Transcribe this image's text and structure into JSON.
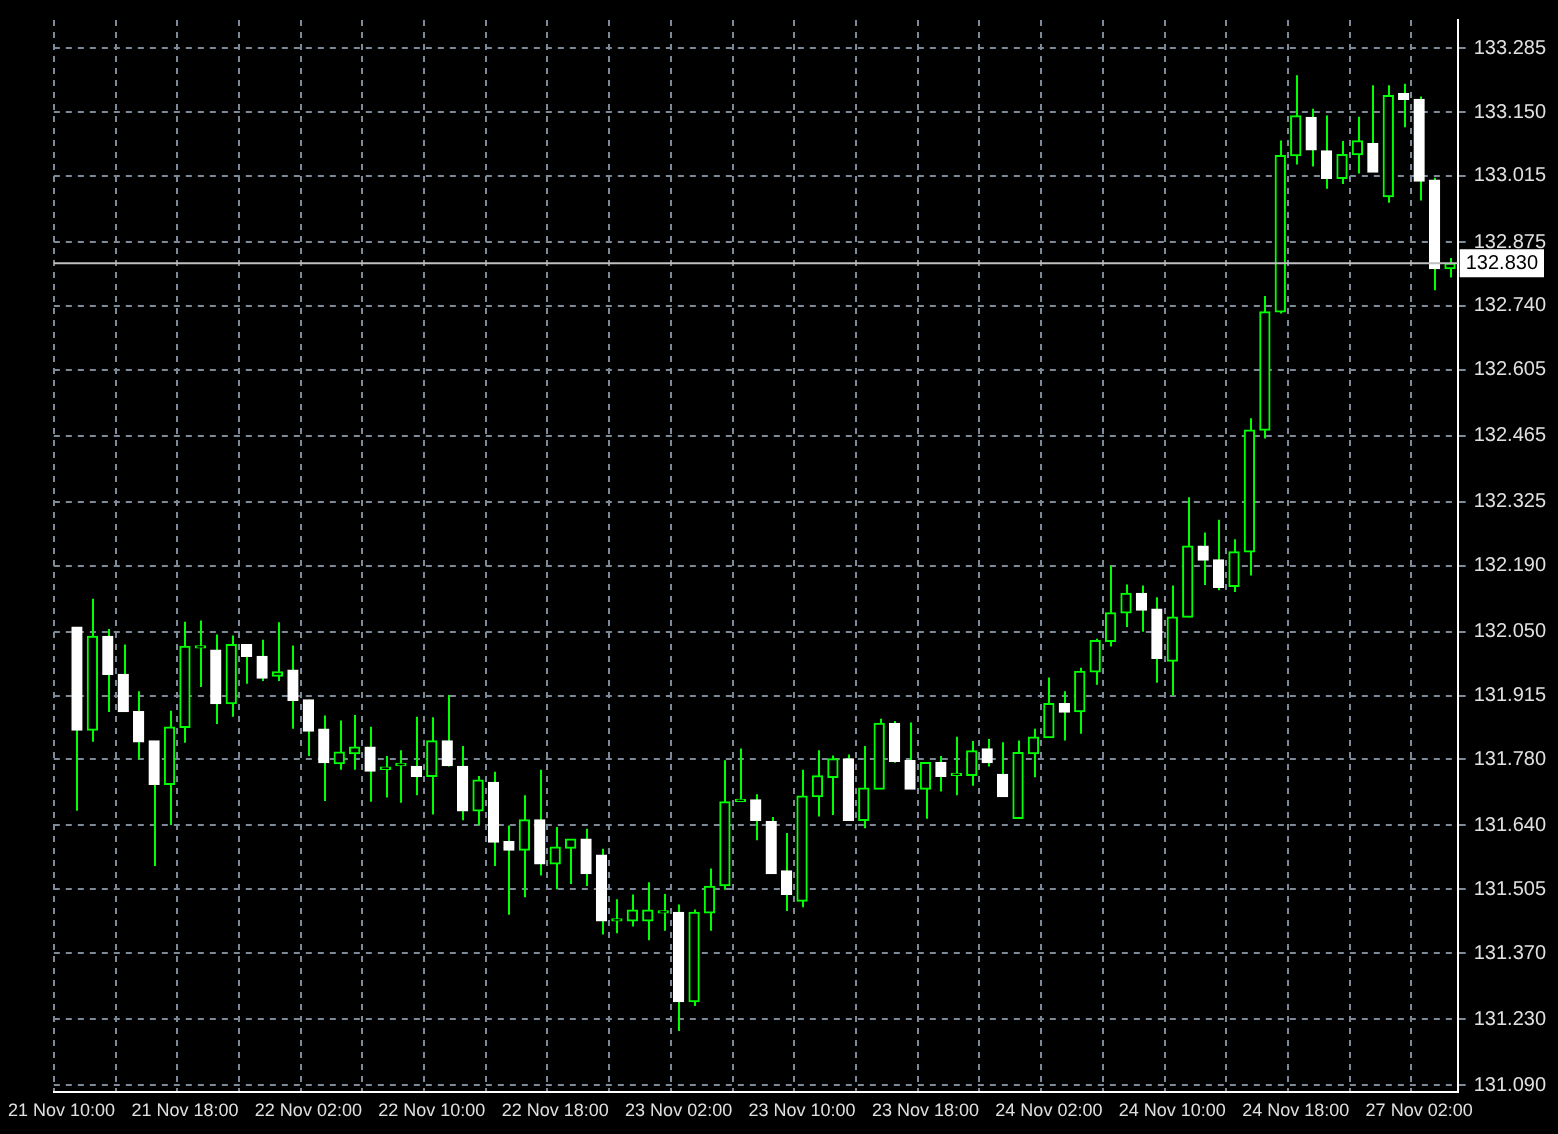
{
  "chart_data": {
    "type": "candlestick",
    "grid": true,
    "colors": [
      null,
      "#ffffff",
      "#00ff00",
      "#ffffff",
      "#ffffff",
      "#ffffff",
      "#ffffff",
      "#00ff00",
      "#00ff00",
      "#00ff00",
      "#ffffff",
      "#00ff00",
      "#ffffff",
      "#ffffff",
      "#00ff00",
      "#ffffff",
      "#ffffff",
      "#ffffff",
      "#00ff00",
      "#00ff00",
      "#ffffff",
      "#00ff00",
      "#00ff00",
      "#ffffff",
      "#00ff00",
      "#ffffff",
      "#ffffff",
      "#00ff00",
      "#ffffff",
      "#ffffff",
      "#00ff00",
      "#ffffff",
      "#00ff00",
      "#00ff00",
      "#ffffff",
      "#ffffff",
      "#00ff00",
      "#00ff00",
      "#00ff00",
      "#00ff00",
      "#ffffff",
      "#00ff00",
      "#00ff00",
      "#00ff00",
      "#00ff00",
      "#ffffff",
      "#ffffff",
      "#ffffff",
      "#00ff00",
      "#00ff00",
      "#00ff00",
      "#ffffff",
      "#00ff00",
      "#00ff00",
      "#ffffff",
      "#ffffff",
      "#00ff00",
      "#ffffff",
      "#00ff00",
      "#00ff00",
      "#ffffff",
      "#ffffff",
      "#00ff00",
      "#00ff00",
      "#00ff00",
      "#ffffff",
      "#00ff00",
      "#00ff00",
      "#00ff00",
      "#00ff00",
      "#ffffff",
      "#ffffff",
      "#00ff00",
      "#00ff00",
      "#ffffff",
      "#ffffff",
      "#00ff00",
      "#00ff00",
      "#00ff00",
      "#00ff00",
      "#00ff00",
      "#ffffff",
      "#ffffff",
      "#00ff00",
      "#00ff00",
      "#ffffff",
      "#00ff00",
      "#ffffff",
      "#ffffff",
      "#ffffff",
      "#00ff00"
    ],
    "categories": [
      "21 Nov 10:00",
      null,
      null,
      null,
      null,
      null,
      null,
      null,
      "21 Nov 18:00",
      null,
      null,
      null,
      null,
      null,
      null,
      null,
      "22 Nov 02:00",
      null,
      null,
      null,
      null,
      null,
      null,
      null,
      "22 Nov 10:00",
      null,
      null,
      null,
      null,
      null,
      null,
      null,
      "22 Nov 18:00",
      null,
      null,
      null,
      null,
      null,
      null,
      null,
      "23 Nov 02:00",
      null,
      null,
      null,
      null,
      null,
      null,
      null,
      "23 Nov 10:00",
      null,
      null,
      null,
      null,
      null,
      null,
      null,
      "23 Nov 18:00",
      null,
      null,
      null,
      null,
      null,
      null,
      null,
      "24 Nov 02:00",
      null,
      null,
      null,
      null,
      null,
      null,
      null,
      "24 Nov 10:00",
      null,
      null,
      null,
      null,
      null,
      null,
      null,
      "24 Nov 18:00",
      null,
      null,
      null,
      null,
      null,
      null,
      null,
      "27 Nov 02:00",
      null,
      null
    ],
    "ohlc": [
      null,
      [
        132.06,
        132.06,
        131.671,
        131.842
      ],
      [
        131.842,
        132.12,
        131.817,
        132.04
      ],
      [
        132.04,
        132.056,
        131.88,
        131.96
      ],
      [
        131.96,
        132.023,
        131.881,
        131.881
      ],
      [
        131.881,
        131.924,
        131.78,
        131.817
      ],
      [
        131.819,
        131.819,
        131.554,
        131.727
      ],
      [
        131.727,
        131.883,
        131.641,
        131.848
      ],
      [
        131.848,
        132.071,
        131.815,
        132.019
      ],
      [
        132.016,
        132.074,
        131.933,
        132.016
      ],
      [
        132.011,
        132.044,
        131.855,
        131.898
      ],
      [
        131.898,
        132.042,
        131.87,
        132.023
      ],
      [
        132.023,
        132.023,
        131.94,
        131.998
      ],
      [
        131.998,
        132.033,
        131.946,
        131.952
      ],
      [
        131.956,
        132.07,
        131.946,
        131.965
      ],
      [
        131.969,
        132.021,
        131.845,
        131.905
      ],
      [
        131.906,
        131.906,
        131.787,
        131.84
      ],
      [
        131.844,
        131.873,
        131.692,
        131.773
      ],
      [
        131.771,
        131.862,
        131.758,
        131.795
      ],
      [
        131.792,
        131.874,
        131.758,
        131.806
      ],
      [
        131.806,
        131.849,
        131.69,
        131.755
      ],
      [
        131.759,
        131.787,
        131.699,
        131.759
      ],
      [
        131.767,
        131.799,
        131.688,
        131.767
      ],
      [
        131.765,
        131.87,
        131.704,
        131.744
      ],
      [
        131.744,
        131.869,
        131.663,
        131.819
      ],
      [
        131.819,
        131.916,
        131.765,
        131.767
      ],
      [
        131.765,
        131.808,
        131.651,
        131.671
      ],
      [
        131.671,
        131.745,
        131.641,
        131.736
      ],
      [
        131.731,
        131.754,
        131.554,
        131.605
      ],
      [
        131.606,
        131.64,
        131.451,
        131.588
      ],
      [
        131.588,
        131.704,
        131.488,
        131.652
      ],
      [
        131.652,
        131.758,
        131.534,
        131.559
      ],
      [
        131.559,
        131.637,
        131.505,
        131.594
      ],
      [
        131.592,
        131.611,
        131.516,
        131.611
      ],
      [
        131.611,
        131.633,
        131.512,
        131.538
      ],
      [
        131.577,
        131.591,
        131.409,
        131.438
      ],
      [
        131.438,
        131.484,
        131.412,
        131.438
      ],
      [
        131.438,
        131.494,
        131.426,
        131.461
      ],
      [
        131.438,
        131.52,
        131.397,
        131.461
      ],
      [
        131.455,
        131.495,
        131.417,
        131.455
      ],
      [
        131.456,
        131.473,
        131.205,
        131.267
      ],
      [
        131.267,
        131.462,
        131.258,
        131.456
      ],
      [
        131.455,
        131.549,
        131.417,
        131.511
      ],
      [
        131.513,
        131.778,
        131.504,
        131.69
      ],
      [
        131.691,
        131.803,
        131.691,
        131.691
      ],
      [
        131.694,
        131.706,
        131.609,
        131.651
      ],
      [
        131.648,
        131.658,
        131.538,
        131.538
      ],
      [
        131.544,
        131.624,
        131.459,
        131.494
      ],
      [
        131.48,
        131.758,
        131.467,
        131.702
      ],
      [
        131.701,
        131.799,
        131.659,
        131.745
      ],
      [
        131.742,
        131.788,
        131.662,
        131.781
      ],
      [
        131.781,
        131.79,
        131.651,
        131.651
      ],
      [
        131.651,
        131.808,
        131.634,
        131.719
      ],
      [
        131.717,
        131.866,
        131.717,
        131.856
      ],
      [
        131.856,
        131.861,
        131.773,
        131.776
      ],
      [
        131.777,
        131.858,
        131.717,
        131.717
      ],
      [
        131.717,
        131.773,
        131.654,
        131.773
      ],
      [
        131.773,
        131.787,
        131.712,
        131.744
      ],
      [
        131.746,
        131.828,
        131.704,
        131.746
      ],
      [
        131.746,
        131.819,
        131.724,
        131.798
      ],
      [
        131.802,
        131.823,
        131.765,
        131.773
      ],
      [
        131.748,
        131.816,
        131.701,
        131.701
      ],
      [
        131.655,
        131.82,
        131.655,
        131.794
      ],
      [
        131.792,
        131.845,
        131.742,
        131.827
      ],
      [
        131.826,
        131.953,
        131.826,
        131.898
      ],
      [
        131.898,
        131.924,
        131.82,
        131.88
      ],
      [
        131.881,
        131.974,
        131.834,
        131.966
      ],
      [
        131.965,
        132.035,
        131.938,
        132.031
      ],
      [
        132.03,
        132.19,
        132.019,
        132.09
      ],
      [
        132.09,
        132.15,
        132.06,
        132.131
      ],
      [
        132.131,
        132.148,
        132.05,
        132.096
      ],
      [
        132.098,
        132.123,
        131.942,
        131.994
      ],
      [
        131.988,
        132.148,
        131.915,
        132.081
      ],
      [
        132.081,
        132.335,
        132.081,
        132.231
      ],
      [
        132.231,
        132.26,
        132.149,
        132.202
      ],
      [
        132.202,
        132.287,
        132.138,
        132.144
      ],
      [
        132.146,
        132.246,
        132.134,
        132.219
      ],
      [
        132.219,
        132.502,
        132.169,
        132.477
      ],
      [
        132.477,
        132.761,
        132.459,
        132.727
      ],
      [
        132.727,
        133.09,
        132.724,
        133.058
      ],
      [
        133.058,
        133.228,
        133.039,
        133.142
      ],
      [
        133.139,
        133.157,
        133.035,
        133.07
      ],
      [
        133.068,
        133.143,
        132.988,
        133.01
      ],
      [
        133.01,
        133.089,
        132.998,
        133.06
      ],
      [
        133.06,
        133.14,
        133.02,
        133.089
      ],
      [
        133.083,
        133.207,
        133.023,
        133.023
      ],
      [
        132.971,
        133.207,
        132.958,
        133.185
      ],
      [
        133.189,
        133.21,
        133.118,
        133.177
      ],
      [
        133.177,
        133.183,
        132.963,
        133.004
      ],
      [
        133.006,
        133.011,
        132.773,
        132.819
      ],
      [
        132.819,
        132.841,
        132.8,
        132.83
      ]
    ],
    "ylim": [
      131.075,
      133.345
    ],
    "yticks": [
      {
        "value": 131.09,
        "label": "131.090"
      },
      {
        "value": 131.23,
        "label": "131.230"
      },
      {
        "value": 131.37,
        "label": "131.370"
      },
      {
        "value": 131.505,
        "label": "131.505"
      },
      {
        "value": 131.64,
        "label": "131.640"
      },
      {
        "value": 131.78,
        "label": "131.780"
      },
      {
        "value": 131.915,
        "label": "131.915"
      },
      {
        "value": 132.05,
        "label": "132.050"
      },
      {
        "value": 132.19,
        "label": "132.190"
      },
      {
        "value": 132.325,
        "label": "132.325"
      },
      {
        "value": 132.465,
        "label": "132.465"
      },
      {
        "value": 132.605,
        "label": "132.605"
      },
      {
        "value": 132.74,
        "label": "132.740"
      },
      {
        "value": 132.875,
        "label": "132.875"
      },
      {
        "value": 133.015,
        "label": "133.015"
      },
      {
        "value": 133.15,
        "label": "133.150"
      },
      {
        "value": 133.285,
        "label": "133.285"
      }
    ],
    "ref_lines": [
      {
        "axis": "y",
        "value": 132.83,
        "label": "132.830",
        "color": "#c0c0c0"
      }
    ]
  }
}
